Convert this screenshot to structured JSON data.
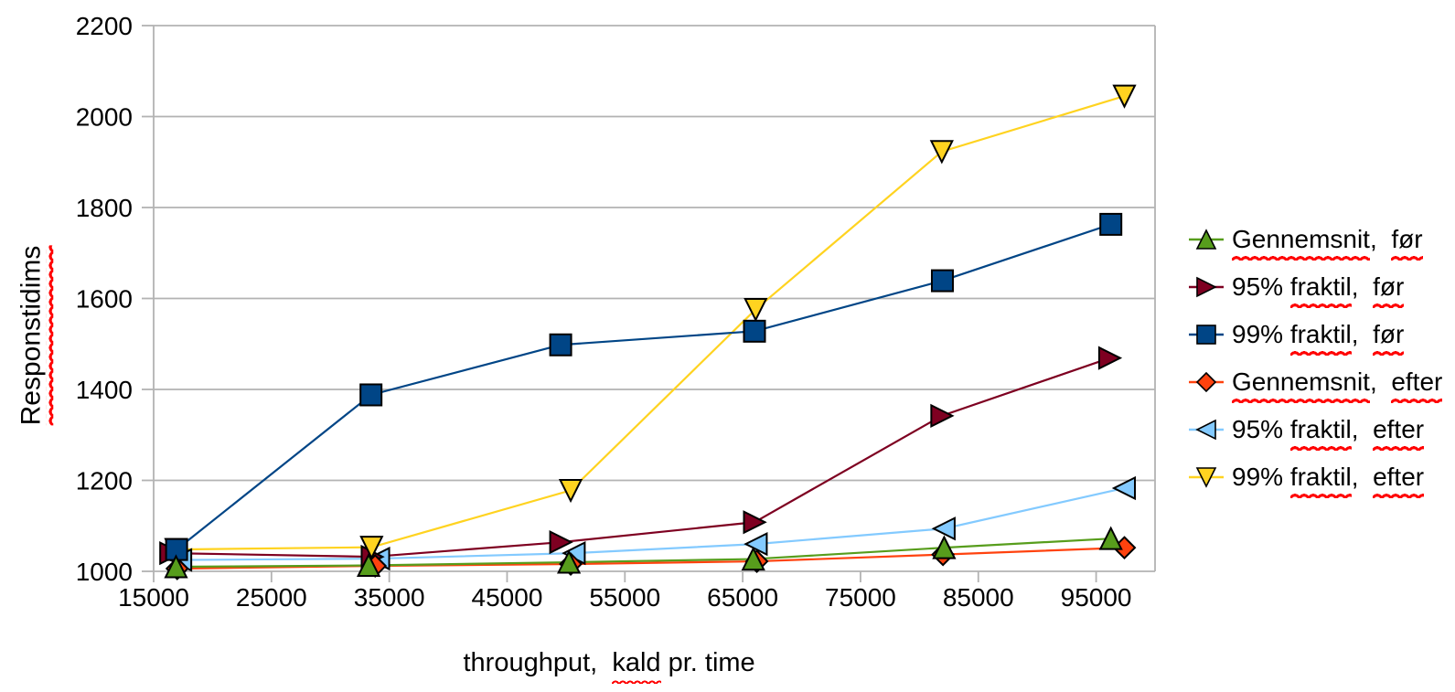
{
  "chart_data": {
    "type": "line",
    "title": "",
    "x_axis": {
      "min": 15000,
      "max": 100000,
      "tick_step": 10000,
      "tick_labels": [
        "15000",
        "25000",
        "35000",
        "45000",
        "55000",
        "65000",
        "75000",
        "85000",
        "95000"
      ],
      "tick_values": [
        15000,
        25000,
        35000,
        45000,
        55000,
        65000,
        75000,
        85000,
        95000
      ],
      "title": "throughput,  kald pr. time",
      "title_parts": [
        {
          "t": "throughput,  ",
          "u": false
        },
        {
          "t": "kald",
          "u": true
        },
        {
          "t": " pr. time",
          "u": false
        }
      ]
    },
    "y_axis": {
      "min": 1000,
      "max": 2200,
      "tick_step": 200,
      "tick_labels": [
        "1000",
        "1200",
        "1400",
        "1600",
        "1800",
        "2000",
        "2200"
      ],
      "tick_values": [
        1000,
        1200,
        1400,
        1600,
        1800,
        2000,
        2200
      ],
      "title": "Responstidims",
      "title_parts": [
        {
          "t": "Responstidims",
          "u": true
        }
      ]
    },
    "grid": "horizontal",
    "grid_color": "#b3b3b3",
    "text_color": "#000000",
    "spellcheck_color": "#ff0000",
    "legend_position": "right",
    "series": [
      {
        "name": "Gennemsnit,  før",
        "label_parts": [
          {
            "t": "Gennemsnit",
            "u": true
          },
          {
            "t": ",  ",
            "u": false
          },
          {
            "t": "før",
            "u": true
          }
        ],
        "color": "#579d1c",
        "marker": "triangle-up",
        "x": [
          16900,
          33250,
          50250,
          65900,
          82100,
          96250
        ],
        "values": [
          1010,
          1013,
          1020,
          1027,
          1052,
          1072
        ]
      },
      {
        "name": "95% fraktil,  før",
        "label_parts": [
          {
            "t": "95% ",
            "u": false
          },
          {
            "t": "fraktil",
            "u": true
          },
          {
            "t": ",  ",
            "u": false
          },
          {
            "t": "før",
            "u": true
          }
        ],
        "color": "#7e0021",
        "marker": "arrow-right",
        "x": [
          16450,
          33550,
          49550,
          66000,
          81900,
          96150
        ],
        "values": [
          1040,
          1032,
          1064,
          1108,
          1342,
          1469
        ]
      },
      {
        "name": "99% fraktil,  før",
        "label_parts": [
          {
            "t": "99% ",
            "u": false
          },
          {
            "t": "fraktil",
            "u": true
          },
          {
            "t": ",  ",
            "u": false
          },
          {
            "t": "før",
            "u": true
          }
        ],
        "color": "#004586",
        "marker": "square",
        "x": [
          16950,
          33450,
          49550,
          66000,
          81950,
          96250
        ],
        "values": [
          1048,
          1388,
          1498,
          1528,
          1639,
          1763
        ]
      },
      {
        "name": "Gennemsnit,  efter",
        "label_parts": [
          {
            "t": "Gennemsnit",
            "u": true
          },
          {
            "t": ",  ",
            "u": false
          },
          {
            "t": "efter",
            "u": true
          }
        ],
        "color": "#ff420e",
        "marker": "diamond",
        "x": [
          17000,
          33800,
          50400,
          66200,
          82000,
          97400
        ],
        "values": [
          1006,
          1012,
          1016,
          1022,
          1037,
          1052
        ]
      },
      {
        "name": "95% fraktil,  efter",
        "label_parts": [
          {
            "t": "95% ",
            "u": false
          },
          {
            "t": "fraktil",
            "u": true
          },
          {
            "t": ",  ",
            "u": false
          },
          {
            "t": "efter",
            "u": true
          }
        ],
        "color": "#83caff",
        "marker": "arrow-left",
        "x": [
          17300,
          34100,
          50700,
          66150,
          82100,
          97400
        ],
        "values": [
          1025,
          1028,
          1040,
          1060,
          1094,
          1183
        ]
      },
      {
        "name": "99% fraktil,  efter",
        "label_parts": [
          {
            "t": "99% ",
            "u": false
          },
          {
            "t": "fraktil",
            "u": true
          },
          {
            "t": ",  ",
            "u": false
          },
          {
            "t": "efter",
            "u": true
          }
        ],
        "color": "#ffd320",
        "marker": "triangle-down",
        "x": [
          16900,
          33500,
          50400,
          66100,
          81900,
          97400
        ],
        "values": [
          1048,
          1053,
          1178,
          1576,
          1923,
          2045
        ]
      }
    ],
    "z_order": [
      4,
      1,
      3,
      5,
      2,
      0
    ]
  }
}
